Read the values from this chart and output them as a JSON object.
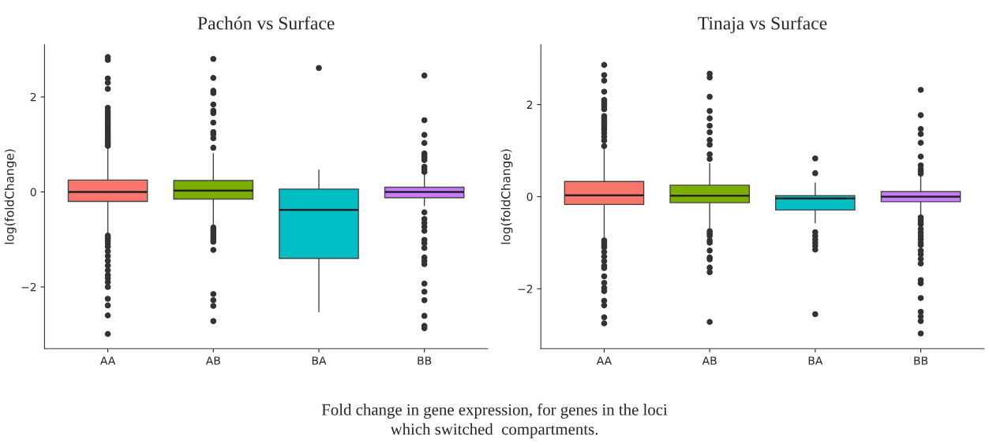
{
  "chart_data": [
    {
      "type": "box",
      "title": "Pachón vs Surface",
      "ylabel": "log(foldChange)",
      "categories": [
        "AA",
        "AB",
        "BA",
        "BB"
      ],
      "colors": [
        "#f8766d",
        "#7cae00",
        "#00bfc4",
        "#c77cff"
      ],
      "ylim": [
        -3.3,
        3.1
      ],
      "yticks": [
        {
          "value": -2,
          "label": "−2"
        },
        0,
        2
      ],
      "grid": false,
      "annotations": [
        "Fold change in gene expression, for genes in the loci\nwhich switched  compartments."
      ],
      "boxes": [
        {
          "low": -0.9,
          "q1": -0.2,
          "median": 0,
          "q3": 0.25,
          "high": 0.95,
          "outliers": [
            2.84,
            2.78,
            2.39,
            2.3,
            2.17,
            1.77,
            1.7,
            1.65,
            1.6,
            1.55,
            1.5,
            1.45,
            1.4,
            1.35,
            1.3,
            1.25,
            1.2,
            1.15,
            1.1,
            1.05,
            1.0,
            0.97,
            -0.92,
            -0.97,
            -1.02,
            -1.08,
            -1.15,
            -1.25,
            -1.35,
            -1.45,
            -1.55,
            -1.65,
            -1.75,
            -1.82,
            -1.9,
            -2.0,
            -2.25,
            -2.39,
            -2.6,
            -2.99
          ]
        },
        {
          "low": -0.73,
          "q1": -0.15,
          "median": 0.03,
          "q3": 0.24,
          "high": 0.81,
          "outliers": [
            2.8,
            2.4,
            2.13,
            2.08,
            1.84,
            1.71,
            1.66,
            1.46,
            1.26,
            1.21,
            1.13,
            0.93,
            -0.75,
            -0.8,
            -0.85,
            -0.9,
            -0.95,
            -1.0,
            -1.05,
            -1.22,
            -2.15,
            -2.28,
            -2.4,
            -2.72
          ]
        },
        {
          "low": -2.52,
          "q1": -1.4,
          "median": -0.38,
          "q3": 0.06,
          "high": 0.46,
          "outliers": [
            2.61
          ]
        },
        {
          "low": -0.29,
          "q1": -0.12,
          "median": 0,
          "q3": 0.1,
          "high": 0.38,
          "outliers": [
            2.45,
            1.51,
            1.2,
            1.03,
            0.81,
            0.76,
            0.72,
            0.67,
            0.53,
            0.48,
            0.42,
            -0.43,
            -0.57,
            -0.65,
            -0.73,
            -0.82,
            -1.01,
            -1.08,
            -1.18,
            -1.38,
            -1.45,
            -1.52,
            -1.93,
            -2.1,
            -2.28,
            -2.61,
            -2.82,
            -2.87
          ]
        }
      ]
    },
    {
      "type": "box",
      "title": "Tinaja vs Surface",
      "ylabel": "log(foldChange)",
      "categories": [
        "AA",
        "AB",
        "BA",
        "BB"
      ],
      "colors": [
        "#f8766d",
        "#7cae00",
        "#00bfc4",
        "#c77cff"
      ],
      "ylim": [
        -3.3,
        3.3
      ],
      "yticks": [
        {
          "value": -2,
          "label": "−2"
        },
        0,
        2
      ],
      "grid": false,
      "boxes": [
        {
          "low": -0.93,
          "q1": -0.17,
          "median": 0.03,
          "q3": 0.33,
          "high": 1.05,
          "outliers": [
            2.86,
            2.64,
            2.52,
            2.28,
            2.1,
            2.05,
            2.0,
            1.95,
            1.9,
            1.75,
            1.7,
            1.65,
            1.6,
            1.55,
            1.5,
            1.45,
            1.38,
            1.3,
            1.22,
            1.1,
            -0.95,
            -1.0,
            -1.05,
            -1.1,
            -1.2,
            -1.3,
            -1.4,
            -1.5,
            -1.55,
            -1.73,
            -1.87,
            -1.98,
            -2.05,
            -2.26,
            -2.36,
            -2.62,
            -2.75
          ]
        },
        {
          "low": -0.72,
          "q1": -0.13,
          "median": 0.02,
          "q3": 0.25,
          "high": 0.72,
          "outliers": [
            2.67,
            2.59,
            2.17,
            1.86,
            1.7,
            1.54,
            1.4,
            1.23,
            1.13,
            0.92,
            0.82,
            -0.75,
            -0.8,
            -0.85,
            -0.95,
            -1.0,
            -1.17,
            -1.32,
            -1.36,
            -1.54,
            -1.64,
            -2.72
          ]
        },
        {
          "low": -0.57,
          "q1": -0.29,
          "median": -0.04,
          "q3": 0.02,
          "high": 0.3,
          "outliers": [
            0.83,
            0.51,
            -0.77,
            -0.85,
            -0.93,
            -1.0,
            -1.07,
            -1.15,
            -2.55
          ]
        },
        {
          "low": -0.41,
          "q1": -0.11,
          "median": 0,
          "q3": 0.11,
          "high": 0.46,
          "outliers": [
            2.32,
            1.77,
            1.47,
            1.36,
            1.17,
            0.87,
            0.68,
            0.6,
            0.55,
            0.5,
            -0.45,
            -0.5,
            -0.55,
            -0.6,
            -0.7,
            -0.78,
            -0.85,
            -0.92,
            -1.0,
            -1.05,
            -1.17,
            -1.25,
            -1.35,
            -1.45,
            -1.81,
            -1.88,
            -2.2,
            -2.5,
            -2.6,
            -2.7,
            -2.97
          ]
        }
      ]
    }
  ]
}
